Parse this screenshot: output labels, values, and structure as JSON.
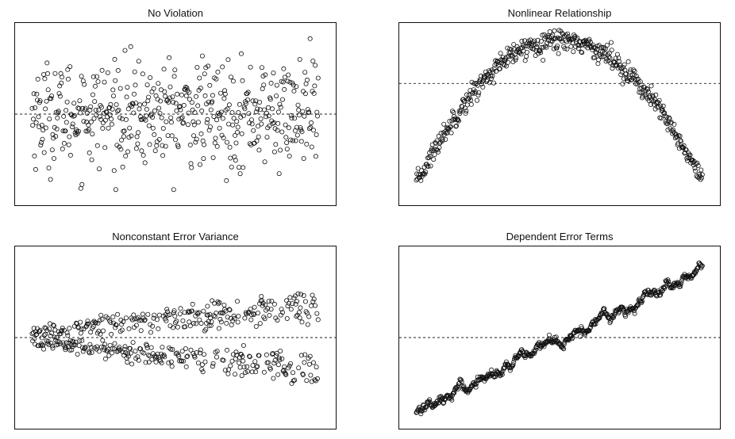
{
  "panels": [
    {
      "title": "No Violation",
      "chart_data": {
        "type": "scatter",
        "title": "No Violation",
        "xlabel": "",
        "ylabel": "",
        "xlim": [
          0,
          1
        ],
        "ylim": [
          -3.2,
          3.2
        ],
        "reference_line": {
          "y": 0,
          "style": "dashed"
        },
        "pattern": "random scatter around zero with constant spread",
        "n_points": 500,
        "points": []
      }
    },
    {
      "title": "Nonlinear Relationship",
      "chart_data": {
        "type": "scatter",
        "title": "Nonlinear Relationship",
        "xlabel": "",
        "ylabel": "",
        "xlim": [
          0,
          1
        ],
        "ylim": [
          -2.6,
          1.2
        ],
        "reference_line": {
          "y": 0,
          "style": "dashed"
        },
        "pattern": "inverted parabola peaking near x = 0.5",
        "n_points": 500,
        "points": []
      }
    },
    {
      "title": "Nonconstant Error Variance",
      "chart_data": {
        "type": "scatter",
        "title": "Nonconstant Error Variance",
        "xlabel": "",
        "ylabel": "",
        "xlim": [
          0,
          1
        ],
        "ylim": [
          -2.2,
          2.2
        ],
        "reference_line": {
          "y": 0,
          "style": "dashed"
        },
        "pattern": "fan shape, spread widens as x increases",
        "n_points": 500,
        "points": []
      }
    },
    {
      "title": "Dependent Error Terms",
      "chart_data": {
        "type": "scatter",
        "title": "Dependent Error Terms",
        "xlabel": "",
        "ylabel": "",
        "xlim": [
          0,
          1
        ],
        "ylim": [
          -2.0,
          2.0
        ],
        "reference_line": {
          "y": 0,
          "style": "dashed"
        },
        "pattern": "tight band along increasing line",
        "n_points": 500,
        "points": []
      }
    }
  ]
}
